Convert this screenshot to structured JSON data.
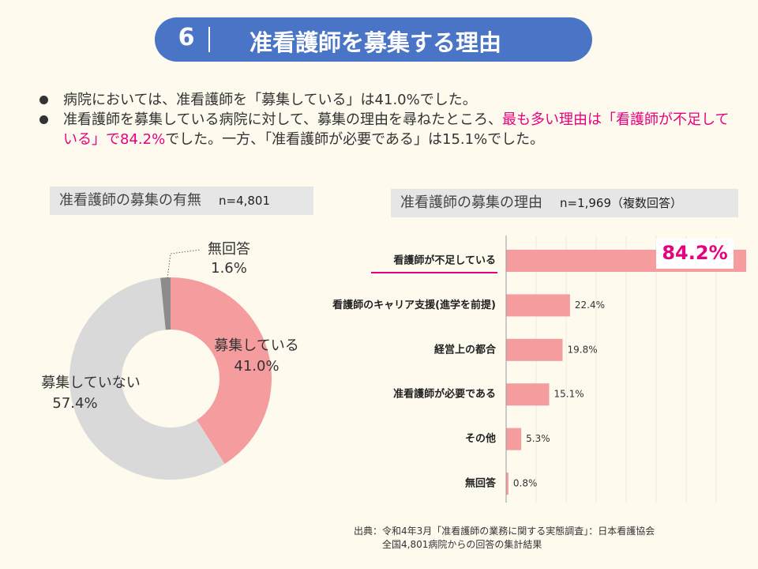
{
  "header": {
    "number": "6",
    "title": "准看護師を募集する理由"
  },
  "bullets": [
    {
      "segments": [
        {
          "text": "病院においては、准看護師を「募集している」は41.0%でした。",
          "emphasis": false
        }
      ]
    },
    {
      "segments": [
        {
          "text": "准看護師を募集している病院に対して、募集の理由を尋ねたところ、",
          "emphasis": false
        },
        {
          "text": "最も多い理由は「看護師が不足している」で84.2%",
          "emphasis": true
        },
        {
          "text": "でした。一方、「准看護師が必要である」は15.1%でした。",
          "emphasis": false
        }
      ]
    }
  ],
  "chart_data": [
    {
      "type": "donut",
      "title": "准看護師の募集の有無",
      "subtitle": "n=4,801",
      "categories": [
        "募集している",
        "募集していない",
        "無回答"
      ],
      "values": [
        41.0,
        57.4,
        1.6
      ],
      "value_labels": [
        "41.0%",
        "57.4%",
        "1.6%"
      ],
      "colors": [
        "#f59c9e",
        "#d9d9d9",
        "#8c8c8c"
      ]
    },
    {
      "type": "hbar",
      "title": "准看護師の募集の理由",
      "subtitle": "n=1,969（複数回答）",
      "categories": [
        "看護師が不足している",
        "看護師のキャリア支援(進学を前提)",
        "経営上の都合",
        "准看護師が必要である",
        "その他",
        "無回答"
      ],
      "values": [
        84.2,
        22.4,
        19.8,
        15.1,
        5.3,
        0.8
      ],
      "value_labels": [
        "84.2%",
        "22.4%",
        "19.8%",
        "15.1%",
        "5.3%",
        "0.8%"
      ],
      "color": "#f59c9e",
      "xlim": [
        0,
        85
      ]
    }
  ],
  "source": [
    "出典：令和4年3月「准看護師の業務に関する実態調査」：日本看護協会",
    "全国4,801病院からの回答の集計結果"
  ]
}
